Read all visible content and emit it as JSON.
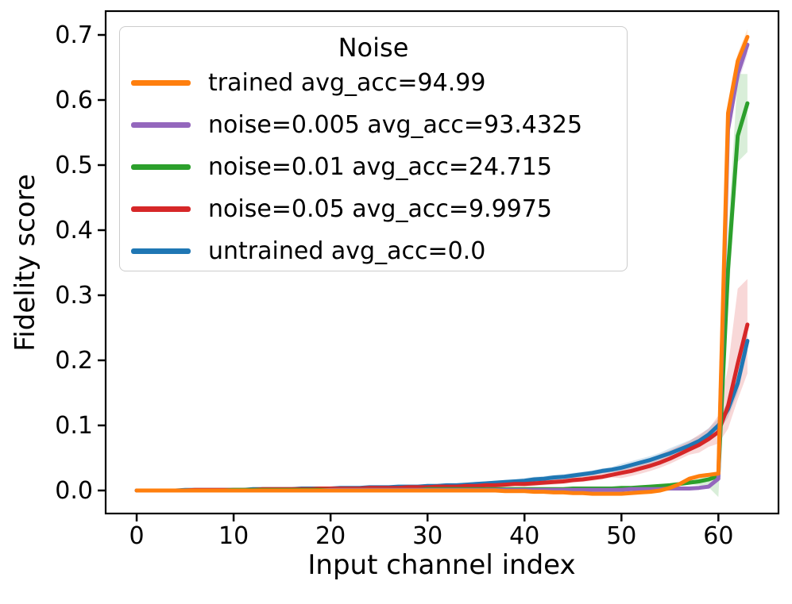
{
  "figure": {
    "background": "#ffffff",
    "text_color": "#000000"
  },
  "chart_data": {
    "type": "line",
    "title": "",
    "xlabel": "Input channel index",
    "ylabel": "Fidelity score",
    "xlim": [
      -3.2,
      66.2
    ],
    "ylim": [
      -0.0354,
      0.7366
    ],
    "x_ticks": [
      0,
      10,
      20,
      30,
      40,
      50,
      60
    ],
    "x_tick_labels": [
      "0",
      "10",
      "20",
      "30",
      "40",
      "50",
      "60"
    ],
    "y_ticks": [
      0.0,
      0.1,
      0.2,
      0.3,
      0.4,
      0.5,
      0.6,
      0.7
    ],
    "y_tick_labels": [
      "0.0",
      "0.1",
      "0.2",
      "0.3",
      "0.4",
      "0.5",
      "0.6",
      "0.7"
    ],
    "grid": false,
    "legend": {
      "title": "Noise",
      "position": "upper-left"
    },
    "x": [
      0,
      1,
      2,
      3,
      4,
      5,
      6,
      7,
      8,
      9,
      10,
      11,
      12,
      13,
      14,
      15,
      16,
      17,
      18,
      19,
      20,
      21,
      22,
      23,
      24,
      25,
      26,
      27,
      28,
      29,
      30,
      31,
      32,
      33,
      34,
      35,
      36,
      37,
      38,
      39,
      40,
      41,
      42,
      43,
      44,
      45,
      46,
      47,
      48,
      49,
      50,
      51,
      52,
      53,
      54,
      55,
      56,
      57,
      58,
      59,
      60,
      61,
      62,
      63
    ],
    "series": [
      {
        "key": "trained",
        "name": "trained avg_acc=94.99",
        "color": "#ff7f0e",
        "band_alpha": 0.18,
        "values": [
          0,
          0,
          0,
          0,
          0,
          0,
          0,
          0,
          0,
          0,
          0,
          0,
          0,
          0,
          0,
          0,
          0,
          0,
          0,
          0,
          0,
          0,
          0,
          0,
          0,
          0,
          0,
          0,
          0,
          0,
          0,
          0,
          0,
          0,
          0,
          0,
          0,
          0,
          -0.001,
          -0.001,
          -0.001,
          -0.002,
          -0.002,
          -0.003,
          -0.003,
          -0.004,
          -0.004,
          -0.005,
          -0.005,
          -0.005,
          -0.005,
          -0.004,
          -0.003,
          -0.002,
          0.0,
          0.004,
          0.01,
          0.018,
          0.022,
          0.024,
          0.026,
          0.58,
          0.66,
          0.697
        ],
        "band_up": [
          0.001,
          0.001,
          0.001,
          0.001,
          0.001,
          0.001,
          0.001,
          0.001,
          0.001,
          0.001,
          0.001,
          0.001,
          0.001,
          0.001,
          0.001,
          0.001,
          0.001,
          0.001,
          0.001,
          0.001,
          0.001,
          0.001,
          0.001,
          0.001,
          0.001,
          0.001,
          0.001,
          0.001,
          0.001,
          0.001,
          0.001,
          0.001,
          0.001,
          0.001,
          0.001,
          0.001,
          0.001,
          0.001,
          0.001,
          0.001,
          0.002,
          0.002,
          0.002,
          0.002,
          0.002,
          0.002,
          0.002,
          0.002,
          0.002,
          0.002,
          0.002,
          0.002,
          0.002,
          0.002,
          0.002,
          0.003,
          0.003,
          0.003,
          0.003,
          0.003,
          0.004,
          0.015,
          0.012,
          0.012
        ],
        "band_down": [
          0.001,
          0.001,
          0.001,
          0.001,
          0.001,
          0.001,
          0.001,
          0.001,
          0.001,
          0.001,
          0.001,
          0.001,
          0.001,
          0.001,
          0.001,
          0.001,
          0.001,
          0.001,
          0.001,
          0.001,
          0.001,
          0.001,
          0.001,
          0.001,
          0.001,
          0.001,
          0.001,
          0.001,
          0.001,
          0.001,
          0.001,
          0.001,
          0.001,
          0.001,
          0.001,
          0.001,
          0.001,
          0.001,
          0.001,
          0.001,
          0.002,
          0.002,
          0.002,
          0.002,
          0.002,
          0.002,
          0.002,
          0.002,
          0.002,
          0.002,
          0.002,
          0.002,
          0.002,
          0.002,
          0.002,
          0.003,
          0.003,
          0.003,
          0.003,
          0.003,
          0.004,
          0.015,
          0.012,
          0.012
        ]
      },
      {
        "key": "noise_0_005",
        "name": "noise=0.005 avg_acc=93.4325",
        "color": "#9467bd",
        "band_alpha": 0.18,
        "values": [
          0,
          0,
          0,
          0,
          0,
          0,
          0,
          0,
          0,
          0,
          0,
          0,
          0,
          0,
          0,
          0,
          0,
          0,
          0,
          0,
          0.001,
          0.001,
          0.001,
          0.001,
          0.001,
          0.001,
          0.001,
          0.001,
          0.001,
          0.001,
          0.001,
          0.001,
          0.001,
          0.001,
          0.001,
          0.001,
          0.001,
          0.001,
          0.001,
          0.001,
          0.001,
          0.001,
          0.001,
          0.001,
          0.001,
          0.001,
          0.001,
          0.001,
          0.001,
          0.001,
          0.001,
          0.002,
          0.002,
          0.002,
          0.002,
          0.003,
          0.003,
          0.003,
          0.004,
          0.006,
          0.018,
          0.555,
          0.64,
          0.685
        ],
        "band_up": [
          0.001,
          0.001,
          0.001,
          0.001,
          0.001,
          0.001,
          0.001,
          0.001,
          0.001,
          0.001,
          0.001,
          0.001,
          0.001,
          0.001,
          0.001,
          0.001,
          0.001,
          0.001,
          0.001,
          0.001,
          0.001,
          0.001,
          0.001,
          0.001,
          0.001,
          0.001,
          0.001,
          0.001,
          0.001,
          0.001,
          0.001,
          0.001,
          0.001,
          0.001,
          0.001,
          0.001,
          0.001,
          0.001,
          0.001,
          0.001,
          0.001,
          0.001,
          0.001,
          0.001,
          0.001,
          0.001,
          0.001,
          0.001,
          0.001,
          0.001,
          0.001,
          0.001,
          0.001,
          0.001,
          0.001,
          0.001,
          0.001,
          0.001,
          0.001,
          0.001,
          0.004,
          0.02,
          0.016,
          0.015
        ],
        "band_down": [
          0.001,
          0.001,
          0.001,
          0.001,
          0.001,
          0.001,
          0.001,
          0.001,
          0.001,
          0.001,
          0.001,
          0.001,
          0.001,
          0.001,
          0.001,
          0.001,
          0.001,
          0.001,
          0.001,
          0.001,
          0.001,
          0.001,
          0.001,
          0.001,
          0.001,
          0.001,
          0.001,
          0.001,
          0.001,
          0.001,
          0.001,
          0.001,
          0.001,
          0.001,
          0.001,
          0.001,
          0.001,
          0.001,
          0.001,
          0.001,
          0.001,
          0.001,
          0.001,
          0.001,
          0.001,
          0.001,
          0.001,
          0.001,
          0.001,
          0.001,
          0.001,
          0.001,
          0.001,
          0.001,
          0.001,
          0.001,
          0.001,
          0.001,
          0.001,
          0.001,
          0.004,
          0.02,
          0.016,
          0.015
        ]
      },
      {
        "key": "noise_0_01",
        "name": "noise=0.01 avg_acc=24.715",
        "color": "#2ca02c",
        "band_alpha": 0.18,
        "values": [
          0,
          0,
          0,
          0,
          0,
          0,
          0,
          0,
          0,
          0,
          0.001,
          0.001,
          0.001,
          0.001,
          0.001,
          0.001,
          0.001,
          0.001,
          0.001,
          0.001,
          0.001,
          0.001,
          0.001,
          0.001,
          0.001,
          0.001,
          0.001,
          0.001,
          0.001,
          0.001,
          0.002,
          0.002,
          0.002,
          0.002,
          0.002,
          0.002,
          0.002,
          0.002,
          0.002,
          0.002,
          0.002,
          0.002,
          0.002,
          0.002,
          0.002,
          0.003,
          0.003,
          0.003,
          0.003,
          0.003,
          0.004,
          0.004,
          0.005,
          0.006,
          0.007,
          0.008,
          0.01,
          0.012,
          0.014,
          0.017,
          0.022,
          0.34,
          0.545,
          0.595
        ],
        "band_up": [
          0.001,
          0.001,
          0.001,
          0.001,
          0.001,
          0.001,
          0.001,
          0.001,
          0.001,
          0.001,
          0.001,
          0.001,
          0.001,
          0.001,
          0.001,
          0.001,
          0.001,
          0.001,
          0.001,
          0.001,
          0.001,
          0.001,
          0.001,
          0.001,
          0.001,
          0.001,
          0.001,
          0.001,
          0.001,
          0.001,
          0.001,
          0.001,
          0.001,
          0.001,
          0.001,
          0.001,
          0.001,
          0.001,
          0.001,
          0.001,
          0.001,
          0.001,
          0.001,
          0.001,
          0.001,
          0.001,
          0.001,
          0.001,
          0.001,
          0.001,
          0.002,
          0.002,
          0.002,
          0.002,
          0.002,
          0.002,
          0.002,
          0.002,
          0.004,
          0.005,
          0.006,
          0.055,
          0.095,
          0.045
        ],
        "band_down": [
          0.001,
          0.001,
          0.001,
          0.001,
          0.001,
          0.001,
          0.001,
          0.001,
          0.001,
          0.001,
          0.001,
          0.001,
          0.001,
          0.001,
          0.001,
          0.001,
          0.001,
          0.001,
          0.001,
          0.001,
          0.001,
          0.001,
          0.001,
          0.001,
          0.001,
          0.001,
          0.001,
          0.001,
          0.001,
          0.001,
          0.001,
          0.001,
          0.001,
          0.001,
          0.001,
          0.001,
          0.001,
          0.001,
          0.001,
          0.001,
          0.001,
          0.001,
          0.001,
          0.001,
          0.001,
          0.001,
          0.001,
          0.001,
          0.001,
          0.001,
          0.002,
          0.002,
          0.002,
          0.002,
          0.002,
          0.002,
          0.002,
          0.002,
          0.006,
          0.012,
          0.032,
          0.055,
          0.04,
          0.075
        ]
      },
      {
        "key": "noise_0_05",
        "name": "noise=0.05 avg_acc=9.9975",
        "color": "#d62728",
        "band_alpha": 0.18,
        "values": [
          0,
          0,
          0,
          0,
          0,
          0,
          0.001,
          0.001,
          0.001,
          0.001,
          0.001,
          0.001,
          0.001,
          0.002,
          0.002,
          0.002,
          0.002,
          0.002,
          0.002,
          0.003,
          0.003,
          0.003,
          0.003,
          0.003,
          0.004,
          0.004,
          0.004,
          0.004,
          0.005,
          0.005,
          0.005,
          0.006,
          0.006,
          0.006,
          0.007,
          0.007,
          0.008,
          0.008,
          0.009,
          0.01,
          0.01,
          0.011,
          0.012,
          0.013,
          0.014,
          0.016,
          0.017,
          0.019,
          0.021,
          0.024,
          0.027,
          0.03,
          0.034,
          0.038,
          0.043,
          0.049,
          0.056,
          0.063,
          0.07,
          0.079,
          0.09,
          0.13,
          0.195,
          0.255
        ],
        "band_up": [
          0.002,
          0.002,
          0.002,
          0.002,
          0.002,
          0.002,
          0.002,
          0.002,
          0.002,
          0.002,
          0.002,
          0.002,
          0.002,
          0.002,
          0.002,
          0.002,
          0.002,
          0.002,
          0.002,
          0.002,
          0.002,
          0.002,
          0.002,
          0.002,
          0.002,
          0.002,
          0.002,
          0.002,
          0.002,
          0.002,
          0.004,
          0.004,
          0.004,
          0.004,
          0.004,
          0.004,
          0.004,
          0.004,
          0.004,
          0.004,
          0.005,
          0.005,
          0.005,
          0.005,
          0.005,
          0.007,
          0.007,
          0.007,
          0.007,
          0.007,
          0.01,
          0.01,
          0.01,
          0.01,
          0.013,
          0.013,
          0.013,
          0.013,
          0.016,
          0.016,
          0.025,
          0.06,
          0.115,
          0.07
        ],
        "band_down": [
          0.002,
          0.002,
          0.002,
          0.002,
          0.002,
          0.002,
          0.002,
          0.002,
          0.002,
          0.002,
          0.002,
          0.002,
          0.002,
          0.002,
          0.002,
          0.002,
          0.002,
          0.002,
          0.002,
          0.002,
          0.002,
          0.002,
          0.002,
          0.002,
          0.002,
          0.002,
          0.002,
          0.002,
          0.002,
          0.002,
          0.003,
          0.003,
          0.003,
          0.003,
          0.003,
          0.003,
          0.003,
          0.003,
          0.003,
          0.003,
          0.004,
          0.004,
          0.004,
          0.004,
          0.004,
          0.004,
          0.004,
          0.004,
          0.004,
          0.004,
          0.008,
          0.008,
          0.008,
          0.008,
          0.008,
          0.008,
          0.008,
          0.008,
          0.012,
          0.012,
          0.018,
          0.035,
          0.055,
          0.075
        ]
      },
      {
        "key": "untrained",
        "name": "untrained avg_acc=0.0",
        "color": "#1f77b4",
        "band_alpha": 0.18,
        "values": [
          0,
          0,
          0,
          0,
          0,
          0.001,
          0.001,
          0.001,
          0.001,
          0.001,
          0.001,
          0.001,
          0.002,
          0.002,
          0.002,
          0.002,
          0.002,
          0.003,
          0.003,
          0.003,
          0.003,
          0.004,
          0.004,
          0.004,
          0.005,
          0.005,
          0.005,
          0.006,
          0.006,
          0.006,
          0.007,
          0.007,
          0.008,
          0.008,
          0.009,
          0.01,
          0.011,
          0.012,
          0.013,
          0.014,
          0.015,
          0.017,
          0.018,
          0.02,
          0.021,
          0.023,
          0.025,
          0.027,
          0.03,
          0.032,
          0.035,
          0.039,
          0.043,
          0.047,
          0.052,
          0.057,
          0.063,
          0.069,
          0.076,
          0.086,
          0.1,
          0.125,
          0.165,
          0.23
        ],
        "band_up": [
          0.002,
          0.002,
          0.002,
          0.002,
          0.002,
          0.002,
          0.002,
          0.002,
          0.002,
          0.002,
          0.002,
          0.002,
          0.002,
          0.002,
          0.002,
          0.002,
          0.002,
          0.002,
          0.002,
          0.002,
          0.002,
          0.002,
          0.002,
          0.002,
          0.002,
          0.002,
          0.002,
          0.002,
          0.002,
          0.002,
          0.003,
          0.003,
          0.003,
          0.003,
          0.003,
          0.003,
          0.003,
          0.003,
          0.003,
          0.003,
          0.004,
          0.004,
          0.004,
          0.004,
          0.004,
          0.004,
          0.004,
          0.004,
          0.004,
          0.004,
          0.006,
          0.006,
          0.006,
          0.006,
          0.006,
          0.008,
          0.008,
          0.008,
          0.008,
          0.01,
          0.01,
          0.013,
          0.015,
          0.016
        ],
        "band_down": [
          0.002,
          0.002,
          0.002,
          0.002,
          0.002,
          0.002,
          0.002,
          0.002,
          0.002,
          0.002,
          0.002,
          0.002,
          0.002,
          0.002,
          0.002,
          0.002,
          0.002,
          0.002,
          0.002,
          0.002,
          0.002,
          0.002,
          0.002,
          0.002,
          0.002,
          0.002,
          0.002,
          0.002,
          0.002,
          0.002,
          0.003,
          0.003,
          0.003,
          0.003,
          0.003,
          0.003,
          0.003,
          0.003,
          0.003,
          0.003,
          0.004,
          0.004,
          0.004,
          0.004,
          0.004,
          0.004,
          0.004,
          0.004,
          0.004,
          0.004,
          0.006,
          0.006,
          0.006,
          0.006,
          0.006,
          0.008,
          0.008,
          0.008,
          0.008,
          0.01,
          0.01,
          0.013,
          0.015,
          0.016
        ]
      }
    ]
  }
}
